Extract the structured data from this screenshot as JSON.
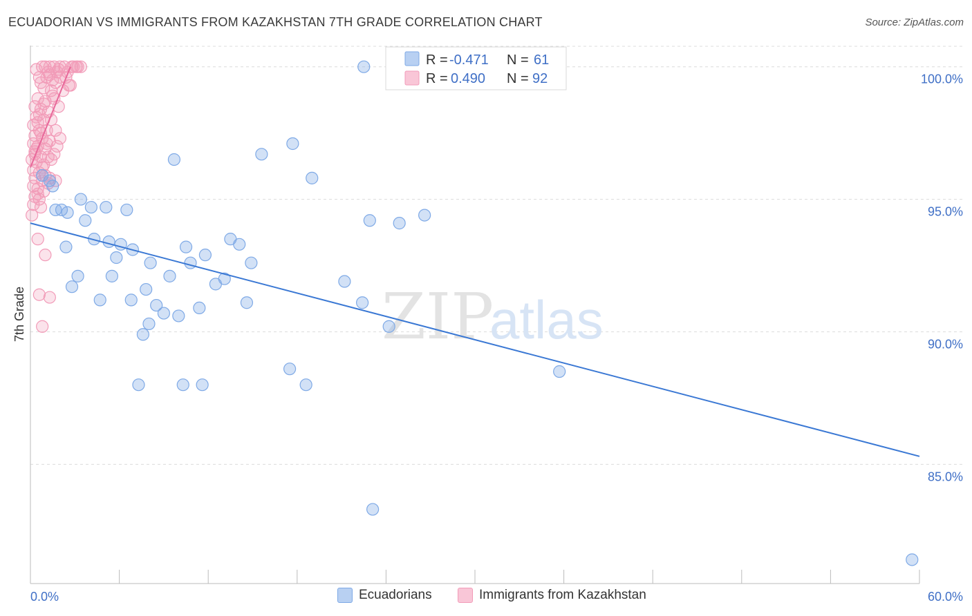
{
  "header": {
    "title": "ECUADORIAN VS IMMIGRANTS FROM KAZAKHSTAN 7TH GRADE CORRELATION CHART",
    "source": "Source: ZipAtlas.com"
  },
  "watermark": {
    "zip": "ZIP",
    "atlas": "atlas"
  },
  "colors": {
    "blue": "#7ea9e6",
    "blue_line": "#3a78d4",
    "pink": "#f29bb8",
    "pink_line": "#e8689a",
    "grid": "#dcdcdc"
  },
  "legend": {
    "r_label": "R =",
    "n_label": "N =",
    "rows": [
      {
        "r": "-0.471",
        "n": "61",
        "series": "blue"
      },
      {
        "r": "0.490",
        "n": "92",
        "series": "pink"
      }
    ]
  },
  "bottom_legend": [
    {
      "label": "Ecuadorians",
      "series": "blue"
    },
    {
      "label": "Immigrants from Kazakhstan",
      "series": "pink"
    }
  ],
  "chart_data": {
    "type": "scatter",
    "title": "ECUADORIAN VS IMMIGRANTS FROM KAZAKHSTAN 7TH GRADE CORRELATION CHART",
    "xlabel": "",
    "ylabel": "7th Grade",
    "xlim": [
      0,
      60
    ],
    "ylim": [
      80.5,
      100.8
    ],
    "x_tick_labels": [
      "0.0%",
      "60.0%"
    ],
    "y_ticks": [
      85,
      90,
      95,
      100
    ],
    "y_tick_labels": [
      "85.0%",
      "90.0%",
      "95.0%",
      "100.0%"
    ],
    "grid": true,
    "legend_position": "top-center",
    "series": [
      {
        "name": "Ecuadorians",
        "color": "#7ea9e6",
        "r": -0.471,
        "n": 61,
        "trend": {
          "x": [
            0,
            60
          ],
          "y": [
            94.1,
            85.3
          ]
        },
        "points": [
          [
            22.5,
            100.0
          ],
          [
            17.7,
            97.1
          ],
          [
            15.6,
            96.7
          ],
          [
            9.7,
            96.5
          ],
          [
            19.0,
            95.8
          ],
          [
            0.8,
            95.9
          ],
          [
            1.3,
            95.7
          ],
          [
            1.5,
            95.5
          ],
          [
            3.4,
            95.0
          ],
          [
            4.1,
            94.7
          ],
          [
            5.1,
            94.7
          ],
          [
            6.5,
            94.6
          ],
          [
            1.7,
            94.6
          ],
          [
            2.1,
            94.6
          ],
          [
            2.5,
            94.5
          ],
          [
            3.7,
            94.2
          ],
          [
            22.9,
            94.2
          ],
          [
            24.9,
            94.1
          ],
          [
            26.6,
            94.4
          ],
          [
            4.3,
            93.5
          ],
          [
            5.3,
            93.4
          ],
          [
            6.1,
            93.3
          ],
          [
            6.9,
            93.1
          ],
          [
            2.4,
            93.2
          ],
          [
            10.5,
            93.2
          ],
          [
            13.5,
            93.5
          ],
          [
            14.1,
            93.3
          ],
          [
            11.8,
            92.9
          ],
          [
            5.8,
            92.8
          ],
          [
            8.1,
            92.6
          ],
          [
            10.8,
            92.6
          ],
          [
            14.9,
            92.6
          ],
          [
            3.2,
            92.1
          ],
          [
            5.5,
            92.1
          ],
          [
            9.4,
            92.1
          ],
          [
            13.1,
            92.0
          ],
          [
            12.5,
            91.8
          ],
          [
            21.2,
            91.9
          ],
          [
            2.8,
            91.7
          ],
          [
            7.8,
            91.6
          ],
          [
            4.7,
            91.2
          ],
          [
            6.8,
            91.2
          ],
          [
            8.5,
            91.0
          ],
          [
            11.4,
            90.9
          ],
          [
            14.6,
            91.1
          ],
          [
            22.4,
            91.1
          ],
          [
            9.0,
            90.7
          ],
          [
            10.0,
            90.6
          ],
          [
            8.0,
            90.3
          ],
          [
            7.6,
            89.9
          ],
          [
            24.2,
            90.2
          ],
          [
            17.5,
            88.6
          ],
          [
            7.3,
            88.0
          ],
          [
            10.3,
            88.0
          ],
          [
            11.6,
            88.0
          ],
          [
            18.6,
            88.0
          ],
          [
            35.7,
            88.5
          ],
          [
            23.1,
            83.3
          ],
          [
            59.5,
            81.4
          ]
        ]
      },
      {
        "name": "Immigrants from Kazakhstan",
        "color": "#f29bb8",
        "r": 0.49,
        "n": 92,
        "trend": {
          "x": [
            0,
            2.7
          ],
          "y": [
            96.2,
            100.0
          ]
        },
        "points": [
          [
            0.8,
            100.0
          ],
          [
            1.0,
            100.0
          ],
          [
            1.3,
            100.0
          ],
          [
            1.6,
            100.0
          ],
          [
            2.0,
            100.0
          ],
          [
            2.3,
            100.0
          ],
          [
            2.8,
            100.0
          ],
          [
            3.1,
            100.0
          ],
          [
            3.4,
            100.0
          ],
          [
            1.2,
            99.8
          ],
          [
            1.8,
            99.8
          ],
          [
            2.5,
            99.8
          ],
          [
            0.6,
            99.6
          ],
          [
            1.1,
            99.6
          ],
          [
            1.5,
            99.5
          ],
          [
            2.0,
            99.6
          ],
          [
            2.6,
            99.3
          ],
          [
            0.9,
            99.2
          ],
          [
            1.4,
            99.1
          ],
          [
            2.2,
            99.1
          ],
          [
            2.7,
            99.3
          ],
          [
            0.5,
            98.8
          ],
          [
            1.0,
            98.7
          ],
          [
            1.6,
            98.8
          ],
          [
            0.3,
            98.5
          ],
          [
            0.7,
            98.4
          ],
          [
            1.2,
            98.3
          ],
          [
            0.4,
            98.1
          ],
          [
            0.9,
            98.0
          ],
          [
            1.4,
            98.0
          ],
          [
            0.2,
            97.8
          ],
          [
            0.6,
            97.6
          ],
          [
            1.1,
            97.6
          ],
          [
            1.7,
            97.6
          ],
          [
            0.3,
            97.4
          ],
          [
            0.8,
            97.3
          ],
          [
            1.3,
            97.2
          ],
          [
            2.0,
            97.3
          ],
          [
            0.2,
            97.1
          ],
          [
            0.5,
            97.0
          ],
          [
            1.0,
            96.9
          ],
          [
            1.8,
            97.0
          ],
          [
            0.3,
            96.7
          ],
          [
            0.7,
            96.6
          ],
          [
            1.2,
            96.6
          ],
          [
            0.1,
            96.5
          ],
          [
            0.4,
            96.4
          ],
          [
            0.9,
            96.3
          ],
          [
            1.4,
            96.5
          ],
          [
            0.2,
            96.1
          ],
          [
            0.6,
            96.0
          ],
          [
            1.0,
            95.9
          ],
          [
            0.3,
            95.8
          ],
          [
            0.8,
            95.7
          ],
          [
            1.3,
            95.8
          ],
          [
            1.7,
            95.7
          ],
          [
            0.2,
            95.5
          ],
          [
            0.5,
            95.4
          ],
          [
            0.9,
            95.3
          ],
          [
            0.3,
            95.1
          ],
          [
            0.6,
            95.0
          ],
          [
            0.2,
            94.8
          ],
          [
            0.7,
            94.7
          ],
          [
            0.1,
            94.4
          ],
          [
            0.5,
            93.5
          ],
          [
            1.0,
            92.9
          ],
          [
            0.6,
            91.4
          ],
          [
            1.3,
            91.3
          ],
          [
            0.8,
            90.2
          ],
          [
            0.4,
            99.9
          ],
          [
            1.9,
            99.9
          ],
          [
            3.2,
            100.0
          ],
          [
            0.7,
            99.4
          ],
          [
            1.5,
            98.9
          ],
          [
            0.5,
            97.9
          ],
          [
            1.1,
            97.1
          ],
          [
            0.4,
            96.9
          ],
          [
            0.8,
            96.2
          ],
          [
            1.2,
            95.6
          ],
          [
            0.6,
            98.2
          ],
          [
            2.4,
            99.6
          ],
          [
            1.7,
            99.4
          ],
          [
            0.9,
            98.6
          ],
          [
            0.3,
            96.8
          ],
          [
            1.6,
            96.7
          ],
          [
            0.5,
            95.2
          ],
          [
            2.9,
            100.0
          ],
          [
            1.3,
            99.7
          ],
          [
            0.7,
            97.5
          ],
          [
            1.9,
            98.5
          ]
        ]
      }
    ]
  }
}
